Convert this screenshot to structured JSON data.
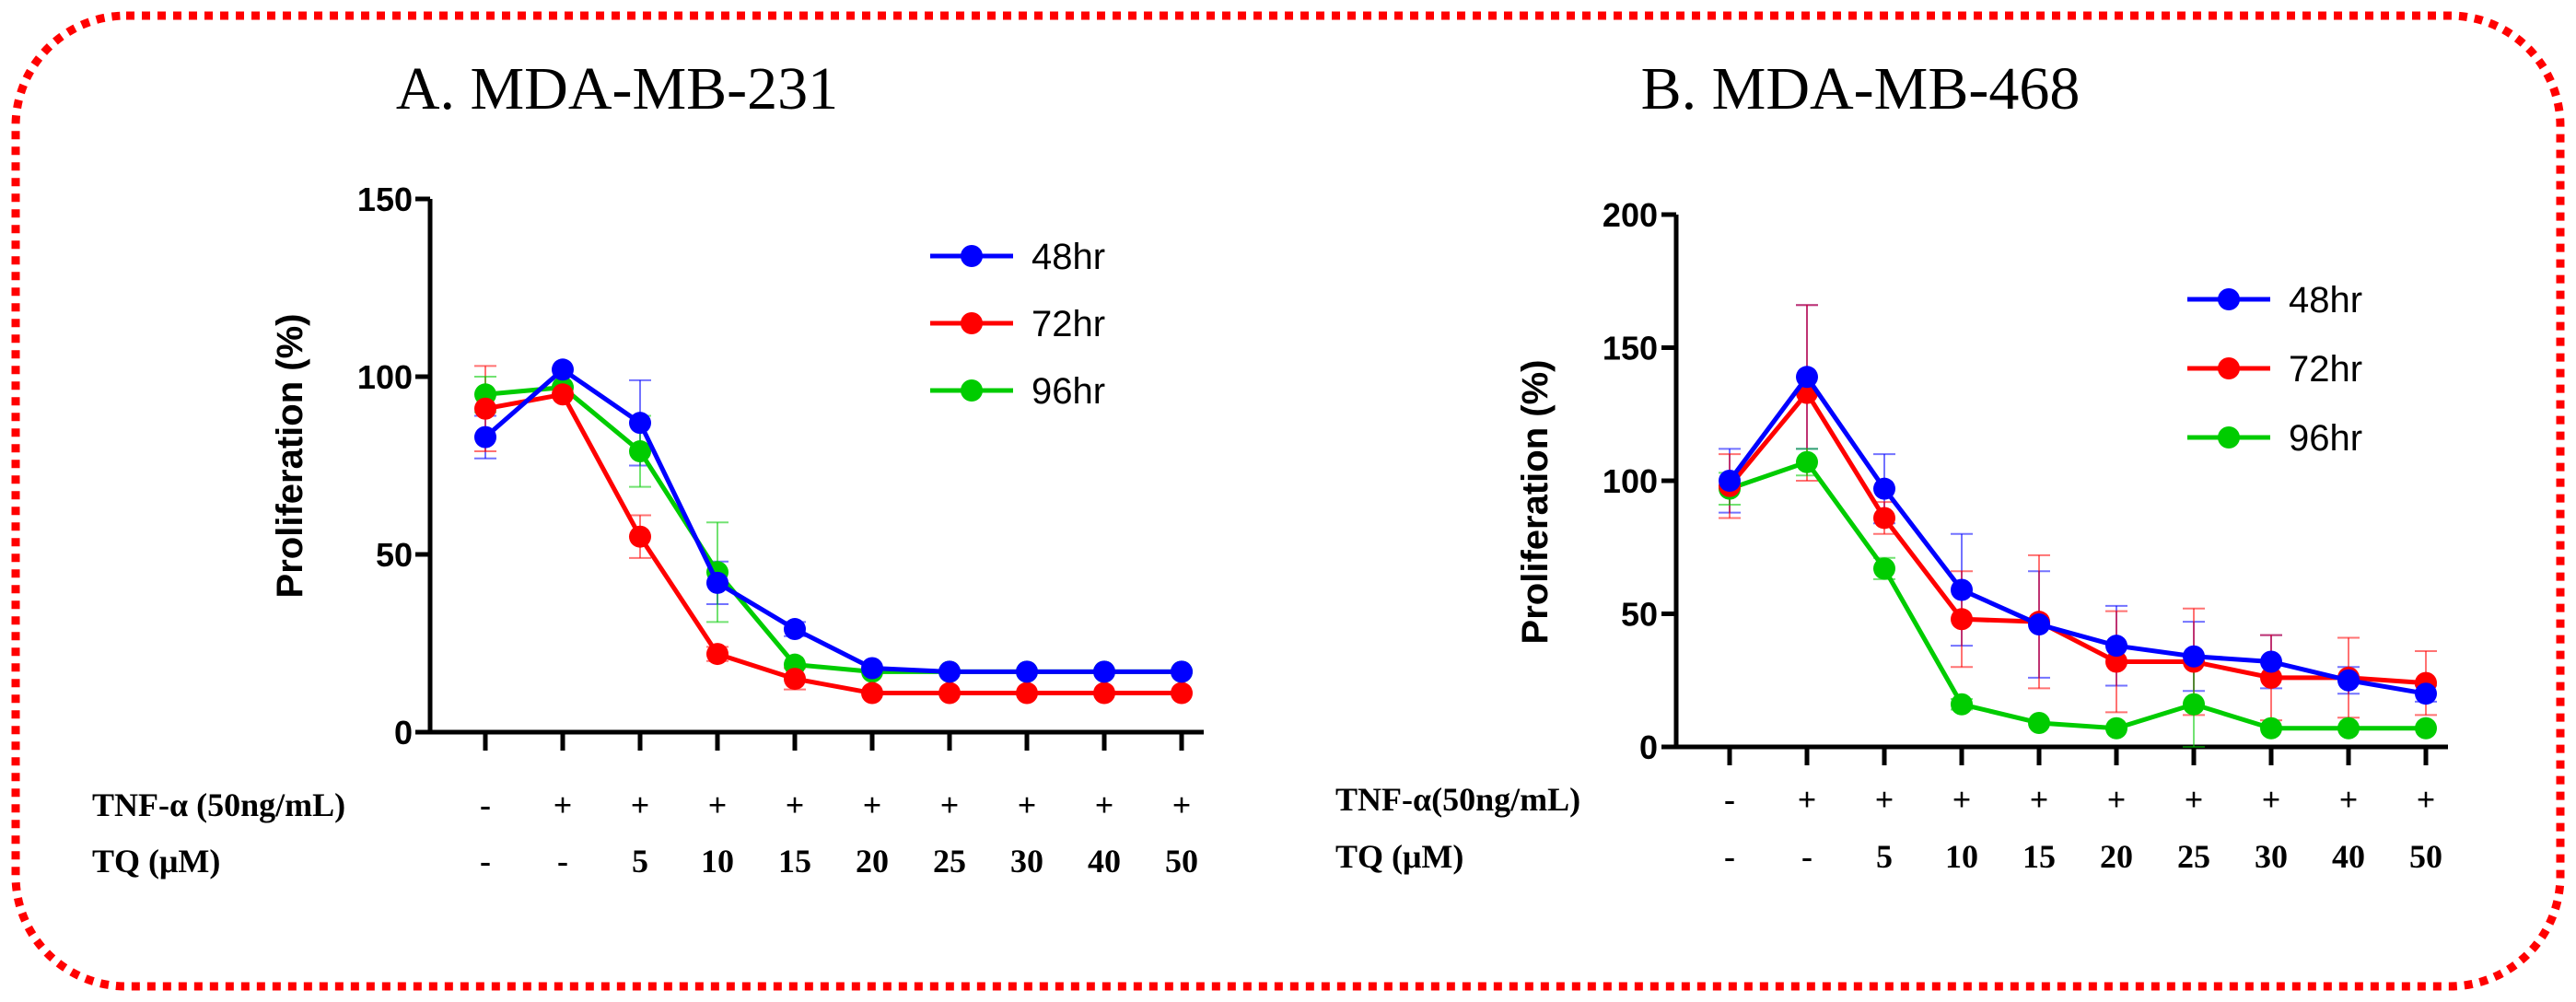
{
  "chart_data": [
    {
      "type": "line",
      "title": "A. MDA-MB-231",
      "ylabel": "Proliferation (%)",
      "ylim": [
        0,
        150
      ],
      "yticks": [
        0,
        50,
        100,
        150
      ],
      "x": [
        1,
        2,
        3,
        4,
        5,
        6,
        7,
        8,
        9,
        10
      ],
      "rows": [
        {
          "label": "TNF-α (50ng/mL)",
          "values": [
            "-",
            "+",
            "+",
            "+",
            "+",
            "+",
            "+",
            "+",
            "+",
            "+"
          ]
        },
        {
          "label": "TQ (μM)",
          "values": [
            "-",
            "-",
            "5",
            "10",
            "15",
            "20",
            "25",
            "30",
            "40",
            "50"
          ]
        }
      ],
      "series": [
        {
          "name": "48hr",
          "color": "#0000ff",
          "values": [
            83,
            102,
            87,
            42,
            29,
            18,
            17,
            17,
            17,
            17
          ],
          "errors": [
            6,
            0,
            12,
            6,
            2,
            1,
            1,
            1,
            1,
            1
          ]
        },
        {
          "name": "72hr",
          "color": "#ff0000",
          "values": [
            91,
            95,
            55,
            22,
            15,
            11,
            11,
            11,
            11,
            11
          ],
          "errors": [
            12,
            0,
            6,
            2,
            3,
            1,
            1,
            1,
            1,
            1
          ]
        },
        {
          "name": "96hr",
          "color": "#00cc00",
          "values": [
            95,
            97,
            79,
            45,
            19,
            17,
            17,
            17,
            17,
            17
          ],
          "errors": [
            5,
            0,
            10,
            14,
            1,
            1,
            1,
            1,
            1,
            1
          ]
        }
      ]
    },
    {
      "type": "line",
      "title": "B. MDA-MB-468",
      "ylabel": "Proliferation (%)",
      "ylim": [
        0,
        200
      ],
      "yticks": [
        0,
        50,
        100,
        150,
        200
      ],
      "x": [
        1,
        2,
        3,
        4,
        5,
        6,
        7,
        8,
        9,
        10
      ],
      "rows": [
        {
          "label": "TNF-α(50ng/mL)",
          "values": [
            "-",
            "+",
            "+",
            "+",
            "+",
            "+",
            "+",
            "+",
            "+",
            "+"
          ]
        },
        {
          "label": "TQ (μM)",
          "values": [
            "-",
            "-",
            "5",
            "10",
            "15",
            "20",
            "25",
            "30",
            "40",
            "50"
          ]
        }
      ],
      "series": [
        {
          "name": "48hr",
          "color": "#0000ff",
          "values": [
            100,
            139,
            97,
            59,
            46,
            38,
            34,
            32,
            25,
            20
          ],
          "errors": [
            12,
            27,
            13,
            21,
            20,
            15,
            13,
            10,
            5,
            3
          ]
        },
        {
          "name": "72hr",
          "color": "#ff0000",
          "values": [
            98,
            133,
            86,
            48,
            47,
            32,
            32,
            26,
            26,
            24
          ],
          "errors": [
            12,
            33,
            6,
            18,
            25,
            19,
            20,
            16,
            15,
            12
          ]
        },
        {
          "name": "96hr",
          "color": "#00cc00",
          "values": [
            97,
            107,
            67,
            16,
            9,
            7,
            16,
            7,
            7,
            7
          ],
          "errors": [
            6,
            5,
            4,
            2,
            1,
            1,
            16,
            1,
            1,
            1
          ]
        }
      ]
    }
  ]
}
